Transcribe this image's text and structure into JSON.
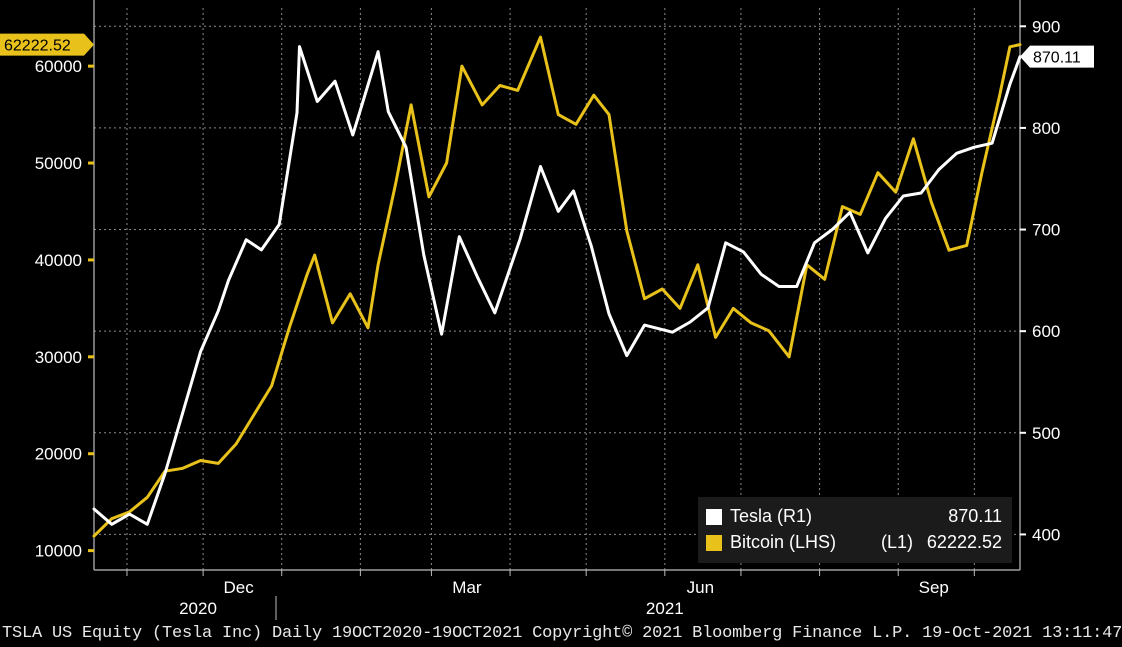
{
  "chart_data": {
    "type": "line",
    "x_range": [
      "2020-10-19",
      "2021-10-19"
    ],
    "x_tick_labels": [
      "Dec",
      "Mar",
      "Jun",
      "Sep"
    ],
    "x_year_labels": [
      "2020",
      "2021"
    ],
    "left_axis": {
      "ticks": [
        10000,
        20000,
        30000,
        40000,
        50000,
        60000
      ],
      "range": [
        8000,
        66000
      ]
    },
    "right_axis": {
      "ticks": [
        400,
        500,
        600,
        700,
        800,
        900
      ],
      "range": [
        365,
        918
      ]
    },
    "grid": true,
    "legend_position": "bottom-right",
    "series": [
      {
        "name": "Bitcoin (LHS)",
        "axis": "L1",
        "axis_label": "(L1)",
        "color": "#e8c21a",
        "last_value": "62222.52",
        "points": [
          [
            "2020-10-19",
            11500
          ],
          [
            "2020-10-26",
            13300
          ],
          [
            "2020-11-02",
            14000
          ],
          [
            "2020-11-09",
            15500
          ],
          [
            "2020-11-16",
            18200
          ],
          [
            "2020-11-23",
            18500
          ],
          [
            "2020-11-30",
            19300
          ],
          [
            "2020-12-07",
            19000
          ],
          [
            "2020-12-14",
            21000
          ],
          [
            "2020-12-21",
            24000
          ],
          [
            "2020-12-28",
            27000
          ],
          [
            "2021-01-04",
            33000
          ],
          [
            "2021-01-11",
            38500
          ],
          [
            "2021-01-14",
            40500
          ],
          [
            "2021-01-21",
            33500
          ],
          [
            "2021-01-28",
            36500
          ],
          [
            "2021-02-04",
            33000
          ],
          [
            "2021-02-08",
            39500
          ],
          [
            "2021-02-15",
            48000
          ],
          [
            "2021-02-21",
            56000
          ],
          [
            "2021-02-28",
            46500
          ],
          [
            "2021-03-07",
            50000
          ],
          [
            "2021-03-13",
            60000
          ],
          [
            "2021-03-21",
            56000
          ],
          [
            "2021-03-28",
            58000
          ],
          [
            "2021-04-04",
            57500
          ],
          [
            "2021-04-13",
            63000
          ],
          [
            "2021-04-20",
            55000
          ],
          [
            "2021-04-27",
            54000
          ],
          [
            "2021-05-04",
            57000
          ],
          [
            "2021-05-10",
            55000
          ],
          [
            "2021-05-17",
            43000
          ],
          [
            "2021-05-24",
            36000
          ],
          [
            "2021-05-31",
            37000
          ],
          [
            "2021-06-07",
            35000
          ],
          [
            "2021-06-14",
            39500
          ],
          [
            "2021-06-21",
            32000
          ],
          [
            "2021-06-28",
            35000
          ],
          [
            "2021-07-05",
            33500
          ],
          [
            "2021-07-12",
            32700
          ],
          [
            "2021-07-20",
            30000
          ],
          [
            "2021-07-27",
            39500
          ],
          [
            "2021-08-03",
            38000
          ],
          [
            "2021-08-10",
            45500
          ],
          [
            "2021-08-17",
            44700
          ],
          [
            "2021-08-24",
            49000
          ],
          [
            "2021-08-31",
            47000
          ],
          [
            "2021-09-07",
            52500
          ],
          [
            "2021-09-14",
            46000
          ],
          [
            "2021-09-21",
            41000
          ],
          [
            "2021-09-28",
            41500
          ],
          [
            "2021-10-04",
            49000
          ],
          [
            "2021-10-11",
            57000
          ],
          [
            "2021-10-15",
            62000
          ],
          [
            "2021-10-19",
            62222.52
          ]
        ]
      },
      {
        "name": "Tesla",
        "axis": "R1",
        "axis_label": "(R1)",
        "color": "#ffffff",
        "last_value": "870.11",
        "points": [
          [
            "2020-10-19",
            425
          ],
          [
            "2020-10-26",
            410
          ],
          [
            "2020-11-02",
            420
          ],
          [
            "2020-11-09",
            410
          ],
          [
            "2020-11-16",
            460
          ],
          [
            "2020-11-23",
            520
          ],
          [
            "2020-11-30",
            580
          ],
          [
            "2020-12-07",
            620
          ],
          [
            "2020-12-11",
            650
          ],
          [
            "2020-12-18",
            690
          ],
          [
            "2020-12-24",
            680
          ],
          [
            "2020-12-31",
            705
          ],
          [
            "2021-01-07",
            815
          ],
          [
            "2021-01-08",
            880
          ],
          [
            "2021-01-15",
            826
          ],
          [
            "2021-01-22",
            846
          ],
          [
            "2021-01-29",
            793
          ],
          [
            "2021-02-08",
            875
          ],
          [
            "2021-02-12",
            816
          ],
          [
            "2021-02-19",
            781
          ],
          [
            "2021-02-26",
            675
          ],
          [
            "2021-03-05",
            597
          ],
          [
            "2021-03-12",
            693
          ],
          [
            "2021-03-19",
            654
          ],
          [
            "2021-03-26",
            618
          ],
          [
            "2021-04-05",
            691
          ],
          [
            "2021-04-13",
            762
          ],
          [
            "2021-04-20",
            718
          ],
          [
            "2021-04-26",
            738
          ],
          [
            "2021-05-03",
            684
          ],
          [
            "2021-05-10",
            617
          ],
          [
            "2021-05-17",
            576
          ],
          [
            "2021-05-24",
            606
          ],
          [
            "2021-06-04",
            599
          ],
          [
            "2021-06-11",
            609
          ],
          [
            "2021-06-18",
            623
          ],
          [
            "2021-06-25",
            687
          ],
          [
            "2021-07-02",
            678
          ],
          [
            "2021-07-09",
            656
          ],
          [
            "2021-07-16",
            644
          ],
          [
            "2021-07-23",
            644
          ],
          [
            "2021-07-30",
            687
          ],
          [
            "2021-08-06",
            700
          ],
          [
            "2021-08-13",
            717
          ],
          [
            "2021-08-20",
            677
          ],
          [
            "2021-08-27",
            711
          ],
          [
            "2021-09-03",
            733
          ],
          [
            "2021-09-10",
            736
          ],
          [
            "2021-09-17",
            759
          ],
          [
            "2021-09-24",
            775
          ],
          [
            "2021-10-01",
            781
          ],
          [
            "2021-10-08",
            785
          ],
          [
            "2021-10-15",
            843
          ],
          [
            "2021-10-19",
            870.11
          ]
        ]
      }
    ]
  },
  "left_axis_flag": "62222.52",
  "right_axis_flag": "870.11",
  "legend": [
    {
      "name": "Tesla (R1)",
      "axis": "",
      "value": "870.11",
      "color": "#ffffff"
    },
    {
      "name": "Bitcoin (LHS)",
      "axis": "(L1)",
      "value": "62222.52",
      "color": "#e8c21a"
    }
  ],
  "footer_text": "TSLA US Equity (Tesla Inc)  Daily 19OCT2020-19OCT2021 Copyright© 2021 Bloomberg Finance L.P. 19-Oct-2021 13:11:47"
}
